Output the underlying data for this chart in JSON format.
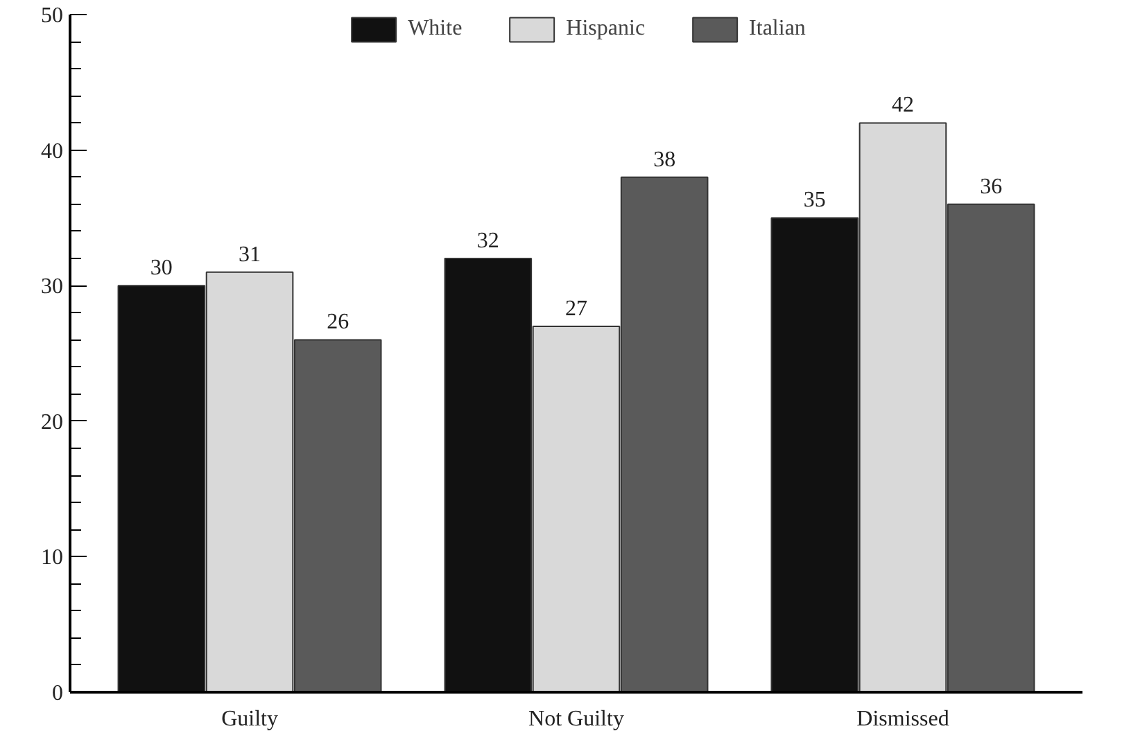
{
  "chart_data": {
    "type": "bar",
    "categories": [
      "Guilty",
      "Not Guilty",
      "Dismissed"
    ],
    "series": [
      {
        "name": "White",
        "color": "#111111",
        "values": [
          30,
          32,
          35
        ]
      },
      {
        "name": "Hispanic",
        "color": "#d9d9d9",
        "values": [
          31,
          27,
          42
        ]
      },
      {
        "name": "Italian",
        "color": "#5a5a5a",
        "values": [
          26,
          38,
          36
        ]
      }
    ],
    "ylim": [
      0,
      50
    ],
    "yticks": [
      0,
      10,
      20,
      30,
      40,
      50
    ],
    "data_labels": true,
    "legend": "top",
    "grid": false
  }
}
